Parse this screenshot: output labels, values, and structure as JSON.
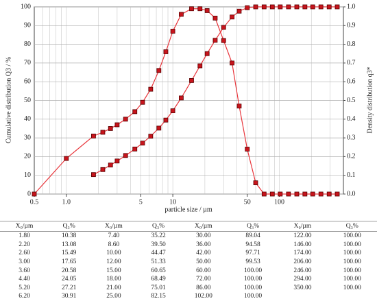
{
  "chart_data": {
    "type": "line",
    "xlabel": "particle size / µm",
    "ylabel": "Cumulative distribution Q3 / %",
    "y2label": "Density distribution q3*",
    "xscale": "log",
    "xlim": [
      0.5,
      400
    ],
    "xticks": [
      0.5,
      {
        "value": 1,
        "label": "1.0"
      },
      5,
      10,
      50,
      100
    ],
    "ylim": [
      0,
      100
    ],
    "yticks": [
      0,
      10,
      20,
      30,
      40,
      50,
      60,
      70,
      80,
      90,
      100
    ],
    "y2lim": [
      0,
      1
    ],
    "y2ticks": [
      {
        "value": 0,
        "label": "0.0"
      },
      0.1,
      0.2,
      0.3,
      0.4,
      0.5,
      0.6,
      0.7,
      0.8,
      0.9,
      {
        "value": 1,
        "label": "1.0"
      }
    ],
    "grid": true,
    "series": [
      {
        "color": "#e8343a",
        "x": [
          1.8,
          2.2,
          2.6,
          3.0,
          3.6,
          4.4,
          5.2,
          6.2,
          7.4,
          8.6,
          10,
          12,
          15,
          18,
          21,
          25,
          30,
          36,
          42,
          50,
          60,
          72,
          86,
          102,
          122,
          146,
          174,
          206,
          246,
          294,
          350
        ],
        "values": [
          10.38,
          13.08,
          15.49,
          17.65,
          20.58,
          24.05,
          27.21,
          30.91,
          35.22,
          39.5,
          44.47,
          51.33,
          60.65,
          68.49,
          75.01,
          82.15,
          89.04,
          94.58,
          97.71,
          99.53,
          100,
          100,
          100,
          100,
          100,
          100,
          100,
          100,
          100,
          100,
          100
        ]
      },
      {
        "color": "#e8343a",
        "axis": "y2",
        "x": [
          0.5,
          1.0,
          1.8,
          2.2,
          2.6,
          3.0,
          3.6,
          4.4,
          5.2,
          6.2,
          7.4,
          8.6,
          10,
          12,
          15,
          18,
          21,
          25,
          30,
          36,
          42,
          50,
          60,
          72,
          86,
          102,
          122,
          146,
          174,
          206,
          246,
          294,
          350
        ],
        "values": [
          0,
          0.19,
          0.31,
          0.33,
          0.35,
          0.37,
          0.4,
          0.44,
          0.49,
          0.56,
          0.66,
          0.76,
          0.87,
          0.96,
          0.99,
          0.99,
          0.98,
          0.94,
          0.82,
          0.7,
          0.47,
          0.24,
          0.06,
          0,
          0,
          0,
          0,
          0,
          0,
          0,
          0,
          0,
          0
        ]
      }
    ]
  },
  "table": {
    "header": [
      "X₀/µm",
      "Q₃%",
      "X₀/µm",
      "Q₃%",
      "X₀/µm",
      "Q₃%",
      "X₀/µm",
      "Q₃%"
    ],
    "rows": [
      [
        "1.80",
        "10.38",
        "7.40",
        "35.22",
        "30.00",
        "89.04",
        "122.00",
        "100.00"
      ],
      [
        "2.20",
        "13.08",
        "8.60",
        "39.50",
        "36.00",
        "94.58",
        "146.00",
        "100.00"
      ],
      [
        "2.60",
        "15.49",
        "10.00",
        "44.47",
        "42.00",
        "97.71",
        "174.00",
        "100.00"
      ],
      [
        "3.00",
        "17.65",
        "12.00",
        "51.33",
        "50.00",
        "99.53",
        "206.00",
        "100.00"
      ],
      [
        "3.60",
        "20.58",
        "15.00",
        "60.65",
        "60.00",
        "100.00",
        "246.00",
        "100.00"
      ],
      [
        "4.40",
        "24.05",
        "18.00",
        "68.49",
        "72.00",
        "100.00",
        "294.00",
        "100.00"
      ],
      [
        "5.20",
        "27.21",
        "21.00",
        "75.01",
        "86.00",
        "100.00",
        "350.00",
        "100.00"
      ],
      [
        "6.20",
        "30.91",
        "25.00",
        "82.15",
        "102.00",
        "100.00"
      ]
    ]
  }
}
